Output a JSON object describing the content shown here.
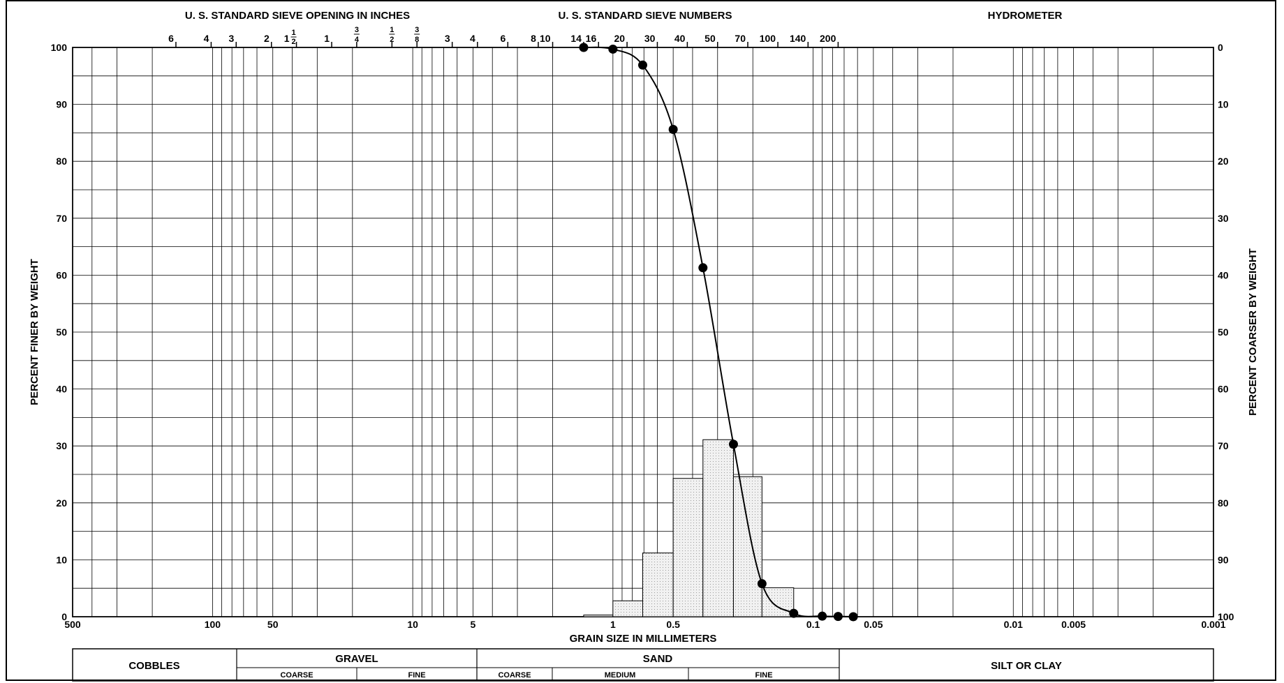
{
  "chart_data": {
    "type": "grain-size-distribution",
    "x_scale": "log",
    "x_range_mm": [
      500,
      0.001
    ],
    "y_range": [
      0,
      100
    ],
    "grid": true,
    "header_labels": {
      "inches": "U. S. STANDARD SIEVE OPENING IN INCHES",
      "numbers": "U. S. STANDARD SIEVE NUMBERS",
      "hydrometer": "HYDROMETER"
    },
    "ylabel_left": "PERCENT FINER BY WEIGHT",
    "ylabel_right": "PERCENT COARSER BY WEIGHT",
    "xlabel": "GRAIN SIZE IN MILLIMETERS",
    "y_ticks": [
      0,
      10,
      20,
      30,
      40,
      50,
      60,
      70,
      80,
      90,
      100
    ],
    "y_ticks_right": [
      100,
      90,
      80,
      70,
      60,
      50,
      40,
      30,
      20,
      10,
      0
    ],
    "x_tick_labels": [
      {
        "mm": 500,
        "label": "500"
      },
      {
        "mm": 100,
        "label": "100"
      },
      {
        "mm": 50,
        "label": "50"
      },
      {
        "mm": 10,
        "label": "10"
      },
      {
        "mm": 5,
        "label": "5"
      },
      {
        "mm": 1,
        "label": "1"
      },
      {
        "mm": 0.5,
        "label": "0.5"
      },
      {
        "mm": 0.1,
        "label": "0.1"
      },
      {
        "mm": 0.05,
        "label": "0.05"
      },
      {
        "mm": 0.01,
        "label": "0.01"
      },
      {
        "mm": 0.005,
        "label": "0.005"
      },
      {
        "mm": 0.001,
        "label": "0.001"
      }
    ],
    "sieve_inch_labels": [
      {
        "mm": 152.4,
        "label": "6",
        "kind": "plain"
      },
      {
        "mm": 101.6,
        "label": "4",
        "kind": "plain"
      },
      {
        "mm": 76.2,
        "label": "3",
        "kind": "plain"
      },
      {
        "mm": 50.8,
        "label": "2",
        "kind": "plain"
      },
      {
        "mm": 38.1,
        "label": "1",
        "kind": "mixed",
        "num": "1",
        "den": "2"
      },
      {
        "mm": 25.4,
        "label": "1",
        "kind": "plain"
      },
      {
        "mm": 19.05,
        "label": "",
        "kind": "frac",
        "num": "3",
        "den": "4"
      },
      {
        "mm": 12.7,
        "label": "",
        "kind": "frac",
        "num": "1",
        "den": "2"
      },
      {
        "mm": 9.525,
        "label": "",
        "kind": "frac",
        "num": "3",
        "den": "8"
      }
    ],
    "sieve_number_labels": [
      {
        "mm": 6.35,
        "label": "3"
      },
      {
        "mm": 4.75,
        "label": "4"
      },
      {
        "mm": 3.35,
        "label": "6"
      },
      {
        "mm": 2.36,
        "label": "8"
      },
      {
        "mm": 2.0,
        "label": "10"
      },
      {
        "mm": 1.4,
        "label": "14"
      },
      {
        "mm": 1.18,
        "label": "16"
      },
      {
        "mm": 0.85,
        "label": "20"
      },
      {
        "mm": 0.6,
        "label": "30"
      },
      {
        "mm": 0.425,
        "label": "40"
      },
      {
        "mm": 0.3,
        "label": "50"
      },
      {
        "mm": 0.212,
        "label": "70"
      },
      {
        "mm": 0.15,
        "label": "100"
      },
      {
        "mm": 0.106,
        "label": "140"
      },
      {
        "mm": 0.075,
        "label": "200"
      }
    ],
    "series": [
      {
        "points": [
          {
            "x": 1.4,
            "y": 100.0
          },
          {
            "x": 1.0,
            "y": 99.7
          },
          {
            "x": 0.71,
            "y": 96.9
          },
          {
            "x": 0.5,
            "y": 85.6
          },
          {
            "x": 0.355,
            "y": 61.3
          },
          {
            "x": 0.25,
            "y": 30.3
          },
          {
            "x": 0.18,
            "y": 5.8
          },
          {
            "x": 0.125,
            "y": 0.6
          },
          {
            "x": 0.09,
            "y": 0.1
          },
          {
            "x": 0.075,
            "y": 0.05
          },
          {
            "x": 0.063,
            "y": 0.0
          }
        ]
      }
    ],
    "histogram": [
      {
        "x_from": 1.4,
        "x_to": 1.0,
        "value": 0.3
      },
      {
        "x_from": 1.0,
        "x_to": 0.71,
        "value": 2.8
      },
      {
        "x_from": 0.71,
        "x_to": 0.5,
        "value": 11.2
      },
      {
        "x_from": 0.5,
        "x_to": 0.355,
        "value": 24.3
      },
      {
        "x_from": 0.355,
        "x_to": 0.25,
        "value": 31.1
      },
      {
        "x_from": 0.25,
        "x_to": 0.18,
        "value": 24.6
      },
      {
        "x_from": 0.18,
        "x_to": 0.125,
        "value": 5.1
      }
    ]
  },
  "classification": {
    "cobbles": "COBBLES",
    "gravel": "GRAVEL",
    "gravel_coarse": "COARSE",
    "gravel_fine": "FINE",
    "sand": "SAND",
    "sand_coarse": "COARSE",
    "sand_medium": "MEDIUM",
    "sand_fine": "FINE",
    "silt_clay": "SILT OR CLAY"
  }
}
